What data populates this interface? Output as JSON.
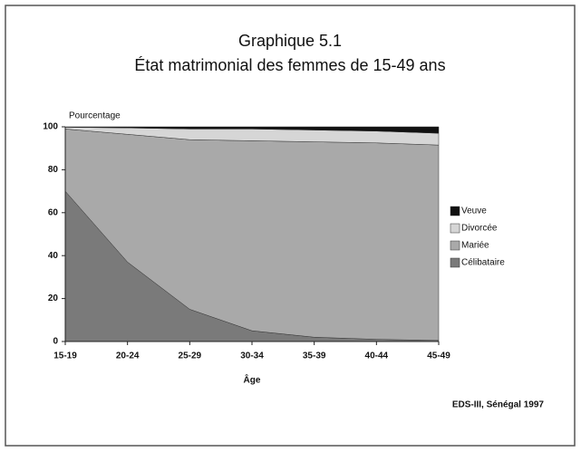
{
  "chart_data": {
    "type": "stacked_area",
    "title": "Graphique 5.1",
    "subtitle": "État matrimonial des femmes de 15-49 ans",
    "y_label": "Pourcentage",
    "x_label": "Âge",
    "source": "EDS-III, Sénégal 1997",
    "categories": [
      "15-19",
      "20-24",
      "25-29",
      "30-34",
      "35-39",
      "40-44",
      "45-49"
    ],
    "series": [
      {
        "name": "Célibataire",
        "color": "#7a7a7a",
        "values": [
          70,
          37,
          15,
          5,
          2,
          1,
          0.5
        ]
      },
      {
        "name": "Mariée",
        "color": "#a9a9a9",
        "values": [
          29,
          59.5,
          79,
          88.5,
          91,
          91.5,
          91
        ]
      },
      {
        "name": "Divorcée",
        "color": "#d6d6d6",
        "values": [
          0.8,
          3,
          5,
          5.5,
          5.5,
          5.5,
          5.5
        ]
      },
      {
        "name": "Veuve",
        "color": "#111111",
        "values": [
          0.2,
          0.5,
          1,
          1,
          1.5,
          2,
          3
        ]
      }
    ],
    "ylim": [
      0,
      100
    ],
    "yticks": [
      0,
      20,
      40,
      60,
      80,
      100
    ]
  }
}
